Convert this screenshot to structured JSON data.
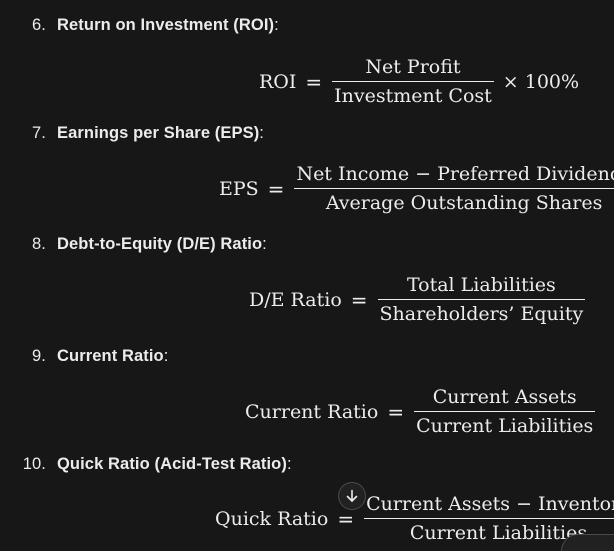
{
  "items": [
    {
      "number": "6.",
      "label": "Return on Investment (ROI)",
      "suffix": ":"
    },
    {
      "number": "7.",
      "label": "Earnings per Share (EPS)",
      "suffix": ":"
    },
    {
      "number": "8.",
      "label": "Debt-to-Equity (D/E) Ratio",
      "suffix": ":"
    },
    {
      "number": "9.",
      "label": "Current Ratio",
      "suffix": ":"
    },
    {
      "number": "10.",
      "label": "Quick Ratio (Acid-Test Ratio)",
      "suffix": ":"
    }
  ],
  "formulas": [
    {
      "lhs": "ROI",
      "eq": "=",
      "numerator": "Net Profit",
      "denominator": "Investment Cost",
      "multiplier": "× 100%"
    },
    {
      "lhs": "EPS",
      "eq": "=",
      "numerator": "Net Income − Preferred Dividends",
      "denominator": "Average Outstanding Shares"
    },
    {
      "lhs": "D/E Ratio",
      "eq": "=",
      "numerator": "Total Liabilities",
      "denominator": "Shareholders’ Equity"
    },
    {
      "lhs": "Current Ratio",
      "eq": "=",
      "numerator": "Current Assets",
      "denominator": "Current Liabilities"
    },
    {
      "lhs": "Quick Ratio",
      "eq": "=",
      "numerator": "Current Assets − Inventory",
      "denominator": "Current Liabilities"
    }
  ],
  "icons": {
    "scroll_down": "arrow-down-icon"
  },
  "colors": {
    "background": "#171717",
    "text": "#ececec"
  }
}
